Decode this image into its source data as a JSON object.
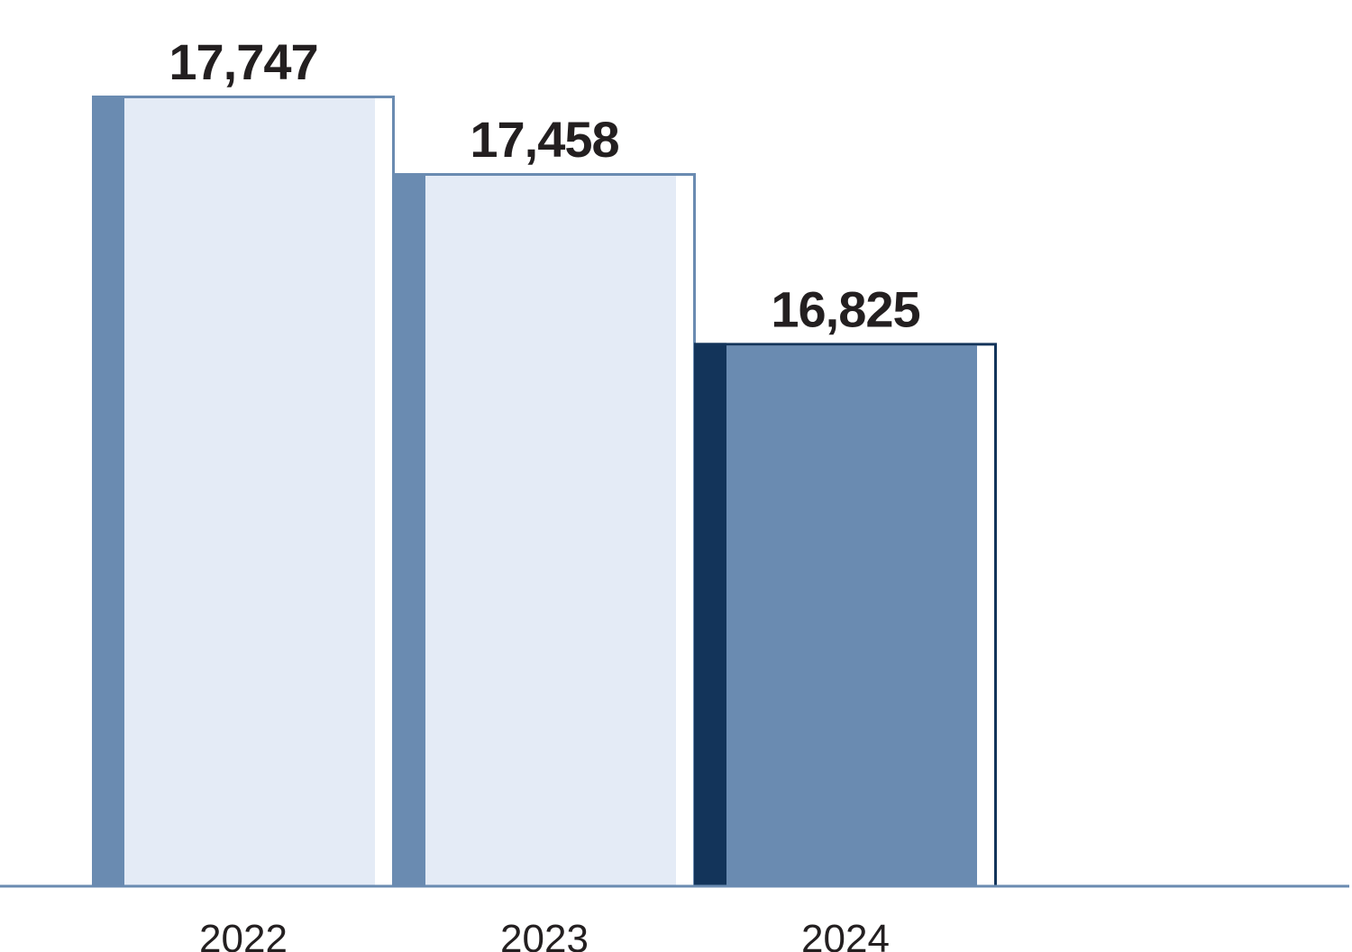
{
  "chart_data": {
    "type": "bar",
    "categories": [
      "2022",
      "2023",
      "2024"
    ],
    "values": [
      17747,
      17458,
      16825
    ],
    "value_labels": [
      "17,747",
      "17,458",
      "16,825"
    ],
    "highlight_index": 2,
    "ylim": [
      14800,
      17747
    ],
    "grid": false,
    "colors": {
      "light_fill": "#e4ebf6",
      "medium_blue": "#6a8bb1",
      "dark_navy": "#13345a",
      "baseline": "#6a8bb1",
      "text": "#231f20"
    }
  }
}
